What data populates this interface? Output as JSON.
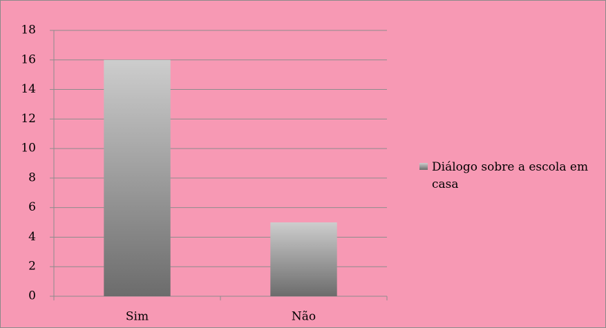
{
  "chart_data": {
    "type": "bar",
    "categories": [
      "Sim",
      "Não"
    ],
    "series": [
      {
        "name": "Diálogo sobre a escola em casa",
        "values": [
          16,
          5
        ]
      }
    ],
    "ylim": [
      0,
      18
    ],
    "yticks": [
      0,
      2,
      4,
      6,
      8,
      10,
      12,
      14,
      16,
      18
    ],
    "grid": true,
    "legend": "right"
  }
}
